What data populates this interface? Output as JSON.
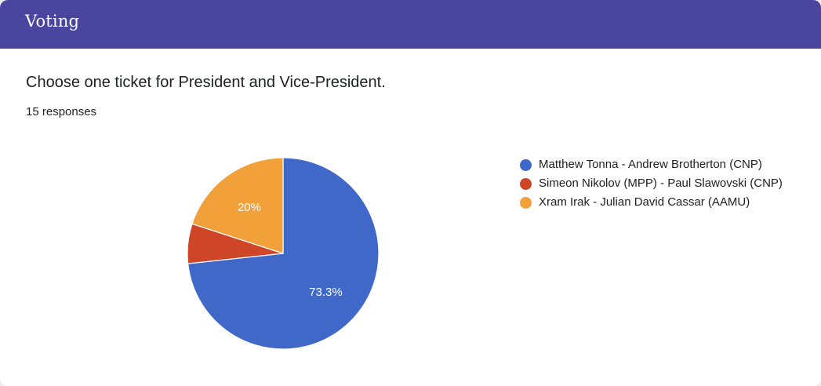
{
  "header": {
    "title": "Voting"
  },
  "question": {
    "text": "Choose one ticket for President and Vice-President.",
    "responses": "15 responses"
  },
  "chart_data": {
    "type": "pie",
    "categories": [
      "Matthew Tonna - Andrew Brotherton (CNP)",
      "Simeon Nikolov (MPP) - Paul Slawovski (CNP)",
      "Xram Irak - Julian David Cassar (AAMU)"
    ],
    "values": [
      73.3,
      6.7,
      20
    ],
    "data_labels": [
      "73.3%",
      "",
      "20%"
    ],
    "colors": [
      "#3f68c9",
      "#cf4527",
      "#f2a03a"
    ],
    "legend_position": "right"
  }
}
